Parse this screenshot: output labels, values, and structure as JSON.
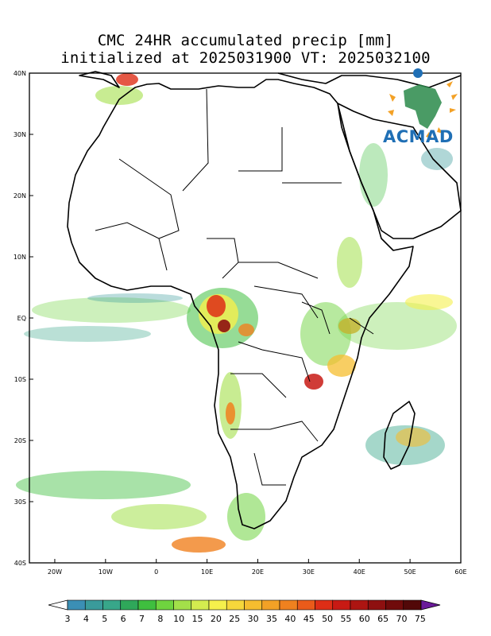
{
  "title": {
    "line1": "CMC 24HR accumulated precip [mm]",
    "line2": "initialized at 2025031900 VT: 2025032100"
  },
  "logo": {
    "text": "ACMAD"
  },
  "map": {
    "lon_range": [
      -25,
      60
    ],
    "lat_range": [
      -40,
      40
    ],
    "x_ticks": [
      {
        "lon": -20,
        "label": "20W"
      },
      {
        "lon": -10,
        "label": "10W"
      },
      {
        "lon": 0,
        "label": "0"
      },
      {
        "lon": 10,
        "label": "10E"
      },
      {
        "lon": 20,
        "label": "20E"
      },
      {
        "lon": 30,
        "label": "30E"
      },
      {
        "lon": 40,
        "label": "40E"
      },
      {
        "lon": 50,
        "label": "50E"
      },
      {
        "lon": 60,
        "label": "60E"
      }
    ],
    "y_ticks": [
      {
        "lat": 40,
        "label": "40N"
      },
      {
        "lat": 30,
        "label": "30N"
      },
      {
        "lat": 20,
        "label": "20N"
      },
      {
        "lat": 10,
        "label": "10N"
      },
      {
        "lat": 0,
        "label": "EQ"
      },
      {
        "lat": -10,
        "label": "10S"
      },
      {
        "lat": -20,
        "label": "20S"
      },
      {
        "lat": -30,
        "label": "30S"
      },
      {
        "lat": -40,
        "label": "40S"
      }
    ]
  },
  "colorbar": {
    "labels": [
      "3",
      "4",
      "5",
      "6",
      "7",
      "8",
      "10",
      "15",
      "20",
      "25",
      "30",
      "35",
      "40",
      "45",
      "50",
      "55",
      "60",
      "65",
      "70",
      "75"
    ],
    "colors": [
      "#3b8fb5",
      "#3a9b9b",
      "#38a78a",
      "#2fa85a",
      "#3fbf3f",
      "#6fd43f",
      "#a3e04a",
      "#d4ec4f",
      "#f5f04c",
      "#f6d73b",
      "#f5bd2f",
      "#f3a126",
      "#f0811f",
      "#ea5b1a",
      "#de2e16",
      "#c81a14",
      "#ad1512",
      "#8e1010",
      "#700b0b",
      "#520808"
    ],
    "end_low_color": "#ffffff",
    "end_high_color": "#6a1a9a"
  }
}
